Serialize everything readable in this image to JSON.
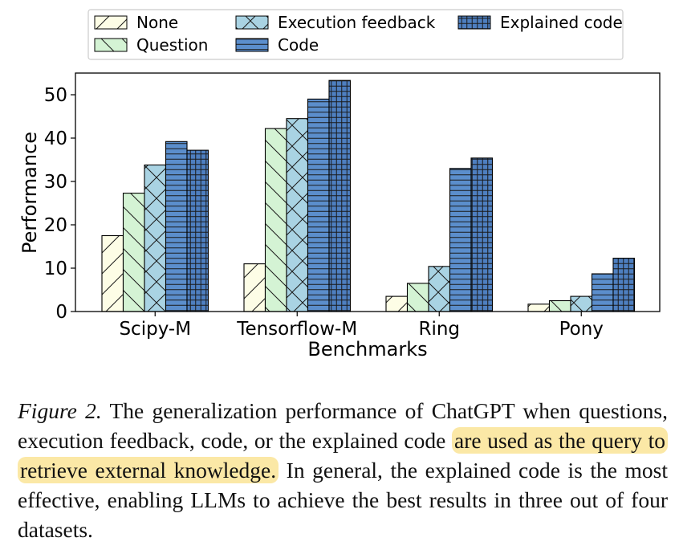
{
  "chart_data": {
    "type": "bar",
    "xlabel": "Benchmarks",
    "ylabel": "Performance",
    "ylim": [
      0,
      55
    ],
    "yticks": [
      0,
      10,
      20,
      30,
      40,
      50
    ],
    "categories": [
      "Scipy-M",
      "Tensorflow-M",
      "Ring",
      "Pony"
    ],
    "legend_position": "top",
    "grid": false,
    "series": [
      {
        "name": "None",
        "values": [
          17.5,
          11.0,
          3.5,
          1.7
        ],
        "color": "#fdfde6",
        "hatch": "/"
      },
      {
        "name": "Question",
        "values": [
          27.3,
          42.2,
          6.5,
          2.5
        ],
        "color": "#d4f3d4",
        "hatch": "\\"
      },
      {
        "name": "Execution feedback",
        "values": [
          33.8,
          44.5,
          10.4,
          3.5
        ],
        "color": "#a9d3e3",
        "hatch": "x"
      },
      {
        "name": "Code",
        "values": [
          39.2,
          49.0,
          33.0,
          8.7
        ],
        "color": "#5b8ecc",
        "hatch": "-"
      },
      {
        "name": "Explained code",
        "values": [
          37.2,
          53.3,
          35.4,
          12.3
        ],
        "color": "#4e7fc0",
        "hatch": "+"
      }
    ]
  },
  "caption": {
    "label": "Figure 2.",
    "text_before": " The generalization performance of ChatGPT when questions, execution feedback, code, or the explained code ",
    "highlight": "are used as the query to retrieve external knowledge.",
    "text_after": " In general, the explained code is the most effective, enabling LLMs to achieve the best results in three out of four datasets."
  },
  "colors": {
    "highlight": "#fbe8a6",
    "axis": "#000000"
  }
}
